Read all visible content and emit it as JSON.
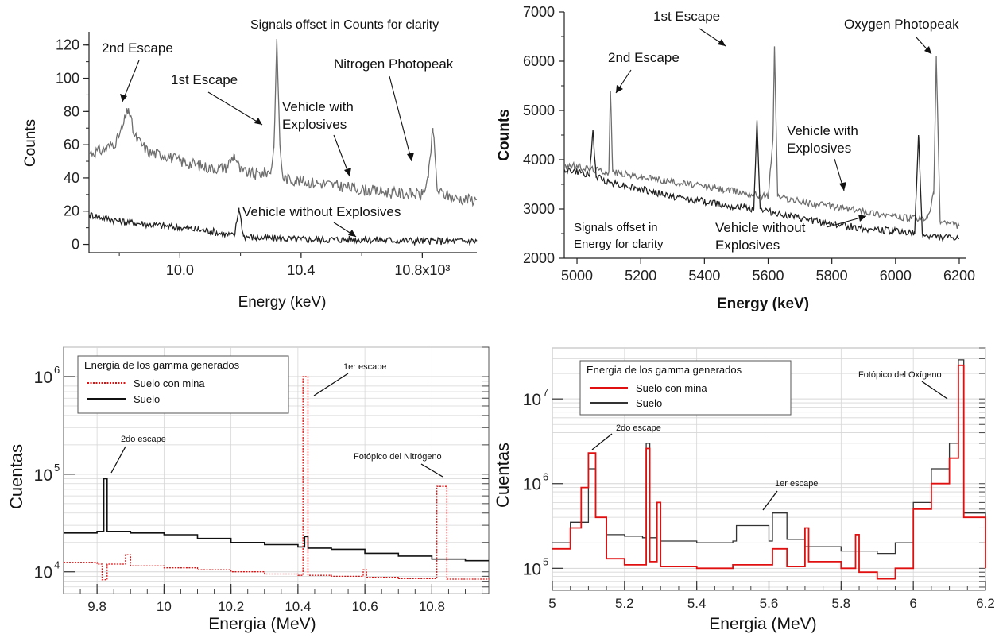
{
  "colors": {
    "dark": "#222222",
    "gray": "#6e6e6e",
    "red": "#e01010",
    "grid": "#d6d6d6"
  },
  "chart_data": [
    {
      "type": "line",
      "title": "",
      "xlabel": "Energy (keV)",
      "ylabel": "Counts",
      "xlim": [
        9700,
        10980
      ],
      "ylim": [
        -5,
        128
      ],
      "xticks": [
        10000,
        10400,
        10800
      ],
      "xtick_labels": [
        "10.0",
        "10.4",
        "10.8x10³"
      ],
      "yticks": [
        0,
        20,
        40,
        60,
        80,
        100,
        120
      ],
      "grid": false,
      "series": [
        {
          "name": "Vehicle with Explosives",
          "color": "gray",
          "x": [
            9700,
            9750,
            9790,
            9810,
            9830,
            9850,
            9900,
            9950,
            10000,
            10050,
            10100,
            10150,
            10180,
            10200,
            10250,
            10300,
            10310,
            10320,
            10330,
            10340,
            10400,
            10500,
            10600,
            10700,
            10800,
            10820,
            10835,
            10850,
            10900,
            10950,
            10980
          ],
          "y": [
            55,
            57,
            62,
            70,
            82,
            65,
            55,
            54,
            50,
            48,
            46,
            46,
            54,
            44,
            42,
            44,
            58,
            122,
            60,
            40,
            38,
            36,
            33,
            31,
            30,
            40,
            70,
            32,
            28,
            27,
            27
          ]
        },
        {
          "name": "Vehicle without Explosives",
          "color": "dark",
          "x": [
            9700,
            9800,
            9900,
            10000,
            10100,
            10150,
            10180,
            10195,
            10210,
            10250,
            10400,
            10600,
            10800,
            10980
          ],
          "y": [
            18,
            14,
            12,
            10,
            8,
            6,
            5,
            22,
            5,
            4,
            3,
            3,
            2,
            2
          ]
        }
      ],
      "annotations": [
        "2nd Escape",
        "1st Escape",
        "Nitrogen Photopeak",
        "Signals offset in Counts for clarity",
        "Vehicle with",
        "Explosives",
        "Vehicle without Explosives"
      ]
    },
    {
      "type": "line",
      "title": "",
      "xlabel": "Energy (keV)",
      "ylabel": "Counts",
      "xlim": [
        4960,
        6220
      ],
      "ylim": [
        2000,
        7000
      ],
      "xticks": [
        5000,
        5200,
        5400,
        5600,
        5800,
        6000,
        6200
      ],
      "yticks": [
        2000,
        3000,
        4000,
        5000,
        6000,
        7000
      ],
      "grid": false,
      "series": [
        {
          "name": "Vehicle with Explosives",
          "color": "gray",
          "x": [
            4960,
            5050,
            5100,
            5105,
            5112,
            5200,
            5300,
            5400,
            5500,
            5600,
            5615,
            5620,
            5630,
            5700,
            5800,
            5900,
            6000,
            6050,
            6100,
            6120,
            6128,
            6140,
            6200
          ],
          "y": [
            3900,
            3800,
            3750,
            5400,
            3750,
            3650,
            3550,
            3450,
            3350,
            3250,
            4400,
            6300,
            3250,
            3150,
            3050,
            2950,
            2850,
            2800,
            2800,
            3300,
            6100,
            2750,
            2650
          ]
        },
        {
          "name": "Vehicle without Explosives",
          "color": "dark",
          "x": [
            4960,
            5040,
            5050,
            5060,
            5100,
            5200,
            5300,
            5400,
            5500,
            5555,
            5565,
            5575,
            5600,
            5700,
            5800,
            5900,
            6000,
            6060,
            6072,
            6084,
            6100,
            6200
          ],
          "y": [
            3800,
            3700,
            4600,
            3650,
            3550,
            3400,
            3250,
            3150,
            3050,
            3000,
            4800,
            3000,
            2950,
            2800,
            2700,
            2600,
            2550,
            2500,
            4500,
            2500,
            2450,
            2400
          ]
        }
      ],
      "annotations": [
        "1st Escape",
        "2nd Escape",
        "Oxygen Photopeak",
        "Vehicle with",
        "Explosives",
        "Signals offset in",
        "Energy for clarity",
        "Vehicle without",
        "Explosives"
      ]
    },
    {
      "type": "line",
      "title": "",
      "xlabel": "Energia (MeV)",
      "ylabel": "Cuentas",
      "yscale": "log",
      "xlim": [
        9.7,
        10.97
      ],
      "ylim": [
        6000,
        2000000
      ],
      "xticks": [
        9.8,
        10,
        10.2,
        10.4,
        10.6,
        10.8
      ],
      "xtick_labels": [
        "9.8",
        "10",
        "10.2",
        "10.4",
        "10.6",
        "10.8"
      ],
      "yticks": [
        10000,
        100000,
        1000000
      ],
      "ytick_labels": [
        "10",
        "10",
        "10"
      ],
      "ytick_exponents": [
        "4",
        "5",
        "6"
      ],
      "grid": true,
      "legend": {
        "title": "Energia de los gamma generados",
        "position": "top-left",
        "entries": [
          "Suelo con mina",
          "Suelo"
        ]
      },
      "series": [
        {
          "name": "Suelo con mina",
          "color": "red",
          "style": "dotted",
          "x": [
            9.7,
            9.8,
            9.815,
            9.83,
            9.885,
            9.9,
            10.0,
            10.1,
            10.2,
            10.3,
            10.4,
            10.415,
            10.43,
            10.5,
            10.595,
            10.605,
            10.7,
            10.815,
            10.83,
            10.845,
            10.9,
            10.97
          ],
          "y": [
            12500,
            12000,
            8300,
            12000,
            15000,
            11500,
            11000,
            10500,
            10000,
            9500,
            9200,
            1000000,
            9200,
            9000,
            10500,
            8800,
            8500,
            75000,
            75000,
            8400,
            8400,
            8500
          ]
        },
        {
          "name": "Suelo",
          "color": "dark",
          "style": "solid",
          "x": [
            9.7,
            9.8,
            9.82,
            9.83,
            9.9,
            10.0,
            10.1,
            10.2,
            10.3,
            10.4,
            10.42,
            10.43,
            10.5,
            10.6,
            10.7,
            10.8,
            10.9,
            10.97
          ],
          "y": [
            25000,
            26000,
            90000,
            26000,
            25000,
            24000,
            22000,
            20000,
            19000,
            18000,
            23000,
            17500,
            17000,
            15500,
            14500,
            13500,
            13000,
            13000
          ]
        }
      ],
      "annotations": [
        "1er escape",
        "2do escape",
        "Fotópico del Nitrógeno"
      ]
    },
    {
      "type": "line",
      "title": "",
      "xlabel": "Energia (MeV)",
      "ylabel": "Cuentas",
      "yscale": "log",
      "xlim": [
        5,
        6.2
      ],
      "ylim": [
        55000,
        40000000
      ],
      "xticks": [
        5,
        5.2,
        5.4,
        5.6,
        5.8,
        6,
        6.2
      ],
      "xtick_labels": [
        "5",
        "5.2",
        "5.4",
        "5.6",
        "5.8",
        "6",
        "6.2"
      ],
      "yticks": [
        100000,
        1000000,
        10000000
      ],
      "ytick_labels": [
        "10",
        "10",
        "10"
      ],
      "ytick_exponents": [
        "5",
        "6",
        "7"
      ],
      "grid": true,
      "legend": {
        "title": "Energia de los gamma generados",
        "position": "top-left",
        "entries": [
          "Suelo con mina",
          "Suelo"
        ]
      },
      "series": [
        {
          "name": "Suelo con mina",
          "color": "red",
          "style": "solid",
          "x": [
            5,
            5.05,
            5.08,
            5.1,
            5.12,
            5.15,
            5.2,
            5.25,
            5.26,
            5.27,
            5.29,
            5.3,
            5.4,
            5.5,
            5.6,
            5.61,
            5.65,
            5.7,
            5.71,
            5.8,
            5.84,
            5.85,
            5.9,
            5.95,
            6.0,
            6.05,
            6.1,
            6.125,
            6.14,
            6.2
          ],
          "y": [
            170000,
            300000,
            900000,
            2300000,
            400000,
            130000,
            110000,
            110000,
            2600000,
            120000,
            600000,
            105000,
            100000,
            110000,
            110000,
            170000,
            105000,
            300000,
            120000,
            100000,
            250000,
            90000,
            75000,
            100000,
            500000,
            1000000,
            2000000,
            25000000,
            400000,
            100000
          ]
        },
        {
          "name": "Suelo",
          "color": "dark",
          "style": "solid",
          "x": [
            5,
            5.05,
            5.1,
            5.12,
            5.15,
            5.2,
            5.25,
            5.26,
            5.27,
            5.29,
            5.3,
            5.4,
            5.5,
            5.51,
            5.6,
            5.61,
            5.65,
            5.7,
            5.8,
            5.9,
            5.95,
            6.0,
            6.05,
            6.1,
            6.125,
            6.14,
            6.2
          ],
          "y": [
            200000,
            350000,
            1500000,
            400000,
            250000,
            240000,
            230000,
            3000000,
            230000,
            600000,
            210000,
            200000,
            210000,
            320000,
            210000,
            450000,
            220000,
            180000,
            160000,
            150000,
            200000,
            600000,
            1500000,
            3000000,
            29000000,
            450000,
            200000
          ]
        }
      ],
      "annotations": [
        "Fotópico del Oxígeno",
        "2do escape",
        "1er escape"
      ]
    }
  ]
}
